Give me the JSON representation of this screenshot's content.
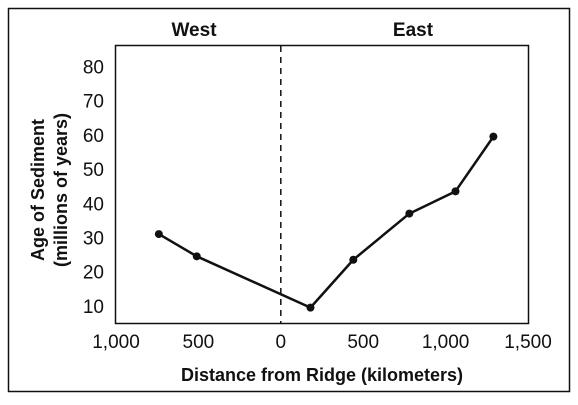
{
  "chart_data": {
    "type": "line",
    "title": "",
    "region_labels": {
      "left": "West",
      "right": "East"
    },
    "xlabel": "Distance from Ridge (kilometers)",
    "ylabel_lines": [
      "Age of Sediment",
      "(millions of years)"
    ],
    "x_ticks": [
      {
        "value": -1000,
        "label": "1,000"
      },
      {
        "value": -500,
        "label": "500"
      },
      {
        "value": 0,
        "label": "0"
      },
      {
        "value": 500,
        "label": "500"
      },
      {
        "value": 1000,
        "label": "1,000"
      },
      {
        "value": 1500,
        "label": "1,500"
      }
    ],
    "y_ticks": [
      {
        "value": 10,
        "label": "10"
      },
      {
        "value": 20,
        "label": "20"
      },
      {
        "value": 30,
        "label": "30"
      },
      {
        "value": 40,
        "label": "40"
      },
      {
        "value": 50,
        "label": "50"
      },
      {
        "value": 60,
        "label": "60"
      },
      {
        "value": 70,
        "label": "70"
      },
      {
        "value": 80,
        "label": "80"
      }
    ],
    "xlim": [
      -1000,
      1500
    ],
    "ylim": [
      5,
      86
    ],
    "ridge_line": {
      "x": 0,
      "style": "dashed"
    },
    "grid": false,
    "series": [
      {
        "points": [
          {
            "x": -740,
            "y": 31
          },
          {
            "x": -510,
            "y": 24.5
          },
          {
            "x": 180,
            "y": 9.5
          },
          {
            "x": 440,
            "y": 23.5
          },
          {
            "x": 780,
            "y": 37
          },
          {
            "x": 1060,
            "y": 43.5
          },
          {
            "x": 1290,
            "y": 59.5
          }
        ]
      }
    ],
    "colors": {
      "line": "#111111",
      "frame": "#111111"
    }
  }
}
